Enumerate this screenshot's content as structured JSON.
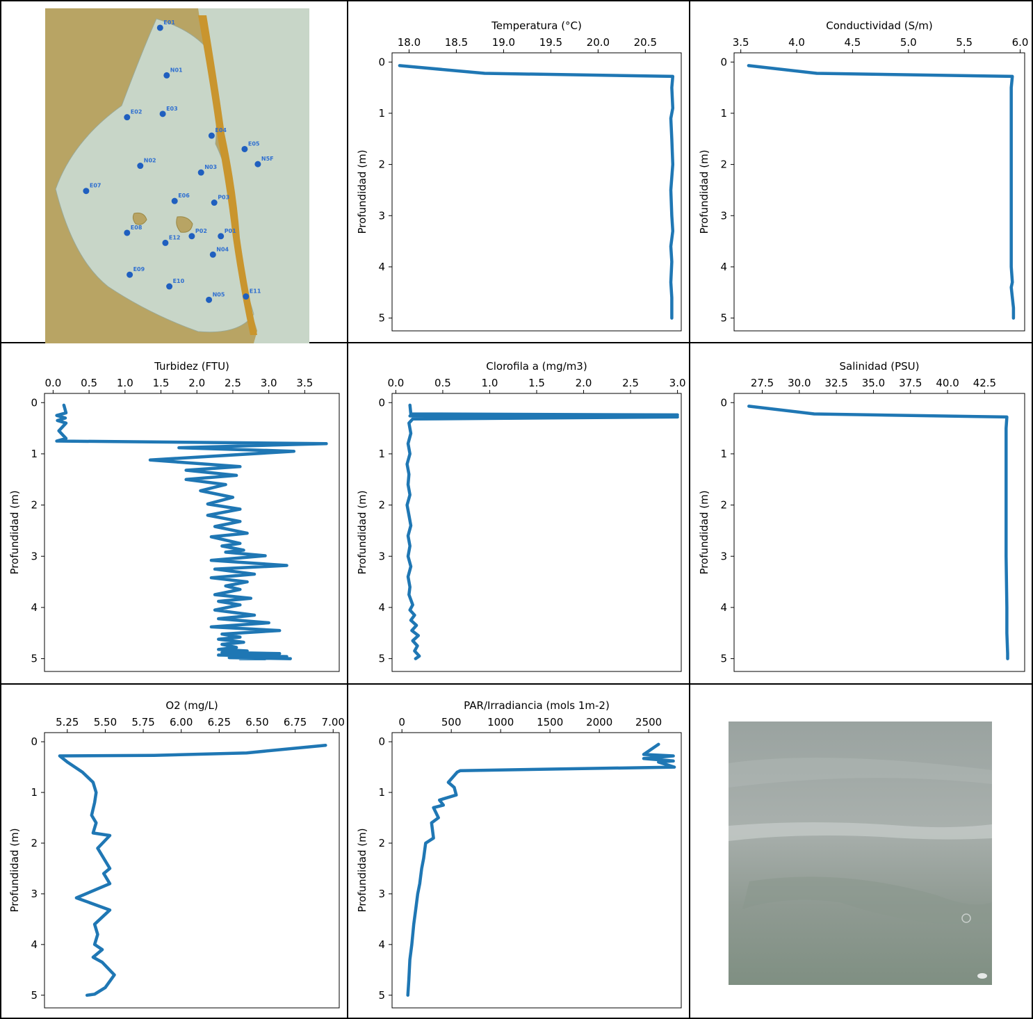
{
  "map": {
    "stations": [
      {
        "label": "E01",
        "lon": 0.435,
        "lat": 0.058
      },
      {
        "label": "N01",
        "lon": 0.46,
        "lat": 0.2
      },
      {
        "label": "E02",
        "lon": 0.31,
        "lat": 0.325
      },
      {
        "label": "E03",
        "lon": 0.445,
        "lat": 0.315
      },
      {
        "label": "E04",
        "lon": 0.63,
        "lat": 0.38
      },
      {
        "label": "E05",
        "lon": 0.755,
        "lat": 0.42
      },
      {
        "label": "N5F",
        "lon": 0.805,
        "lat": 0.465
      },
      {
        "label": "N02",
        "lon": 0.36,
        "lat": 0.47
      },
      {
        "label": "N03",
        "lon": 0.59,
        "lat": 0.49
      },
      {
        "label": "E07",
        "lon": 0.155,
        "lat": 0.545
      },
      {
        "label": "E06",
        "lon": 0.49,
        "lat": 0.575
      },
      {
        "label": "P03",
        "lon": 0.64,
        "lat": 0.58
      },
      {
        "label": "E08",
        "lon": 0.31,
        "lat": 0.67
      },
      {
        "label": "E12",
        "lon": 0.455,
        "lat": 0.7
      },
      {
        "label": "P02",
        "lon": 0.555,
        "lat": 0.68
      },
      {
        "label": "P01",
        "lon": 0.665,
        "lat": 0.68
      },
      {
        "label": "N04",
        "lon": 0.635,
        "lat": 0.735
      },
      {
        "label": "E09",
        "lon": 0.32,
        "lat": 0.795
      },
      {
        "label": "E10",
        "lon": 0.47,
        "lat": 0.83
      },
      {
        "label": "N05",
        "lon": 0.62,
        "lat": 0.87
      },
      {
        "label": "E11",
        "lon": 0.76,
        "lat": 0.86
      }
    ],
    "colors": {
      "land": "#b8a464",
      "sea": "#c8d6c8",
      "urban": "#c9952e",
      "marker": "#1f5fbf"
    }
  },
  "chart_data": [
    {
      "type": "line",
      "title": "Temperatura (°C)",
      "ylabel": "Profundidad (m)",
      "xlim": [
        17.82,
        20.88
      ],
      "ylim": [
        5.25,
        -0.18
      ],
      "xticks": [
        18.0,
        18.5,
        19.0,
        19.5,
        20.0,
        20.5
      ],
      "xtick_labels": [
        "18.0",
        "18.5",
        "19.0",
        "19.5",
        "20.0",
        "20.5"
      ],
      "yticks": [
        0,
        1,
        2,
        3,
        4,
        5
      ],
      "ytick_labels": [
        "0",
        "1",
        "2",
        "3",
        "4",
        "5"
      ],
      "series": [
        {
          "x": [
            17.9,
            18.8,
            20.79,
            20.78,
            20.79,
            20.77,
            20.78,
            20.79,
            20.77,
            20.78,
            20.79,
            20.77,
            20.78,
            20.77,
            20.78,
            20.78
          ],
          "y": [
            0.07,
            0.22,
            0.28,
            0.5,
            0.9,
            1.1,
            1.5,
            2.0,
            2.5,
            3.0,
            3.3,
            3.6,
            3.9,
            4.3,
            4.6,
            5.0
          ]
        }
      ],
      "color": "#1f77b4"
    },
    {
      "type": "line",
      "title": "Conductividad (S/m)",
      "ylabel": "Profundidad (m)",
      "xlim": [
        3.44,
        6.04
      ],
      "ylim": [
        5.25,
        -0.18
      ],
      "xticks": [
        3.5,
        4.0,
        4.5,
        5.0,
        5.5,
        6.0
      ],
      "xtick_labels": [
        "3.5",
        "4.0",
        "4.5",
        "5.0",
        "5.5",
        "6.0"
      ],
      "yticks": [
        0,
        1,
        2,
        3,
        4,
        5
      ],
      "ytick_labels": [
        "0",
        "1",
        "2",
        "3",
        "4",
        "5"
      ],
      "series": [
        {
          "x": [
            3.57,
            4.18,
            5.93,
            5.92,
            5.92,
            5.92,
            5.92,
            5.92,
            5.93,
            5.92,
            5.93,
            5.94,
            5.94
          ],
          "y": [
            0.07,
            0.22,
            0.28,
            0.5,
            1.0,
            2.0,
            3.0,
            4.0,
            4.3,
            4.4,
            4.6,
            4.8,
            5.0
          ]
        }
      ],
      "color": "#1f77b4"
    },
    {
      "type": "line",
      "title": "Turbidez (FTU)",
      "ylabel": "Profundidad (m)",
      "xlim": [
        -0.12,
        3.98
      ],
      "ylim": [
        5.25,
        -0.18
      ],
      "xticks": [
        0.0,
        0.5,
        1.0,
        1.5,
        2.0,
        2.5,
        3.0,
        3.5
      ],
      "xtick_labels": [
        "0.0",
        "0.5",
        "1.0",
        "1.5",
        "2.0",
        "2.5",
        "3.0",
        "3.5"
      ],
      "yticks": [
        0,
        1,
        2,
        3,
        4,
        5
      ],
      "ytick_labels": [
        "0",
        "1",
        "2",
        "3",
        "4",
        "5"
      ],
      "series": [
        {
          "x": [
            0.15,
            0.18,
            0.05,
            0.17,
            0.06,
            0.18,
            0.08,
            0.18,
            0.05,
            3.8,
            1.75,
            3.35,
            1.35,
            2.6,
            1.85,
            2.55,
            1.85,
            2.4,
            2.05,
            2.5,
            2.15,
            2.6,
            2.15,
            2.6,
            2.25,
            2.7,
            2.2,
            2.6,
            2.35,
            2.65,
            2.4,
            2.95,
            2.2,
            3.25,
            2.25,
            2.8,
            2.2,
            2.7,
            2.4,
            2.6,
            2.25,
            2.75,
            2.3,
            2.6,
            2.25,
            2.8,
            2.3,
            3.0,
            2.2,
            3.15,
            2.35,
            2.6,
            2.3,
            2.65,
            2.35,
            2.55,
            2.3,
            2.7,
            2.35,
            3.15,
            2.3,
            3.25,
            2.45,
            3.3,
            2.55,
            3.05,
            2.5,
            2.95,
            2.6
          ],
          "y": [
            0.05,
            0.2,
            0.25,
            0.3,
            0.35,
            0.4,
            0.55,
            0.7,
            0.75,
            0.8,
            0.88,
            0.95,
            1.12,
            1.25,
            1.32,
            1.42,
            1.5,
            1.6,
            1.72,
            1.85,
            1.98,
            2.08,
            2.2,
            2.32,
            2.42,
            2.55,
            2.62,
            2.75,
            2.8,
            2.88,
            2.92,
            2.99,
            3.08,
            3.18,
            3.25,
            3.35,
            3.42,
            3.5,
            3.58,
            3.65,
            3.75,
            3.82,
            3.88,
            3.95,
            4.05,
            4.15,
            4.22,
            4.3,
            4.38,
            4.45,
            4.52,
            4.58,
            4.62,
            4.68,
            4.72,
            4.78,
            4.82,
            4.85,
            4.88,
            4.9,
            4.93,
            4.96,
            4.98,
            5.0,
            4.95,
            4.92,
            4.98,
            5.0,
            5.0
          ]
        }
      ],
      "color": "#1f77b4"
    },
    {
      "type": "line",
      "title": "Clorofila a (mg/m3)",
      "ylabel": "Profundidad (m)",
      "xlim": [
        -0.04,
        3.04
      ],
      "ylim": [
        5.25,
        -0.18
      ],
      "xticks": [
        0.0,
        0.5,
        1.0,
        1.5,
        2.0,
        2.5,
        3.0
      ],
      "xtick_labels": [
        "0.0",
        "0.5",
        "1.0",
        "1.5",
        "2.0",
        "2.5",
        "3.0"
      ],
      "yticks": [
        0,
        1,
        2,
        3,
        4,
        5
      ],
      "ytick_labels": [
        "0",
        "1",
        "2",
        "3",
        "4",
        "5"
      ],
      "series": [
        {
          "x": [
            0.15,
            0.16,
            3.0,
            0.15,
            3.0,
            0.18,
            0.14,
            0.16,
            0.13,
            0.15,
            0.12,
            0.14,
            0.13,
            0.15,
            0.12,
            0.14,
            0.16,
            0.13,
            0.15,
            0.13,
            0.16,
            0.13,
            0.15,
            0.14,
            0.16,
            0.18,
            0.15,
            0.2,
            0.16,
            0.22,
            0.17,
            0.24,
            0.18,
            0.23,
            0.2,
            0.25,
            0.21
          ],
          "y": [
            0.05,
            0.22,
            0.24,
            0.26,
            0.28,
            0.32,
            0.4,
            0.6,
            0.8,
            1.0,
            1.2,
            1.4,
            1.6,
            1.8,
            2.0,
            2.2,
            2.4,
            2.6,
            2.8,
            3.0,
            3.2,
            3.4,
            3.6,
            3.75,
            3.85,
            3.95,
            4.05,
            4.15,
            4.25,
            4.35,
            4.45,
            4.55,
            4.65,
            4.75,
            4.85,
            4.95,
            5.0
          ]
        }
      ],
      "color": "#1f77b4"
    },
    {
      "type": "line",
      "title": "Salinidad (PSU)",
      "ylabel": "Profundidad (m)",
      "xlim": [
        25.6,
        45.2
      ],
      "ylim": [
        5.25,
        -0.18
      ],
      "xticks": [
        27.5,
        30.0,
        32.5,
        35.0,
        37.5,
        40.0,
        42.5
      ],
      "xtick_labels": [
        "27.5",
        "30.0",
        "32.5",
        "35.0",
        "37.5",
        "40.0",
        "42.5"
      ],
      "yticks": [
        0,
        1,
        2,
        3,
        4,
        5
      ],
      "ytick_labels": [
        "0",
        "1",
        "2",
        "3",
        "4",
        "5"
      ],
      "series": [
        {
          "x": [
            26.6,
            31.0,
            44.0,
            43.95,
            43.95,
            43.95,
            43.95,
            44.0,
            44.0,
            44.05,
            44.05
          ],
          "y": [
            0.07,
            0.22,
            0.28,
            0.5,
            1.0,
            2.0,
            3.0,
            4.0,
            4.5,
            4.9,
            5.0
          ]
        }
      ],
      "color": "#1f77b4"
    },
    {
      "type": "line",
      "title": "O2 (mg/L)",
      "ylabel": "Profundidad (m)",
      "xlim": [
        5.1,
        7.04
      ],
      "ylim": [
        5.25,
        -0.18
      ],
      "xticks": [
        5.25,
        5.5,
        5.75,
        6.0,
        6.25,
        6.5,
        6.75,
        7.0
      ],
      "xtick_labels": [
        "5.25",
        "5.50",
        "5.75",
        "6.00",
        "6.25",
        "6.50",
        "6.75",
        "7.00"
      ],
      "yticks": [
        0,
        1,
        2,
        3,
        4,
        5
      ],
      "ytick_labels": [
        "0",
        "1",
        "2",
        "3",
        "4",
        "5"
      ],
      "series": [
        {
          "x": [
            6.95,
            6.43,
            5.82,
            5.2,
            5.25,
            5.35,
            5.42,
            5.44,
            5.43,
            5.41,
            5.44,
            5.42,
            5.53,
            5.45,
            5.53,
            5.49,
            5.53,
            5.31,
            5.53,
            5.43,
            5.45,
            5.43,
            5.48,
            5.42,
            5.48,
            5.56,
            5.5,
            5.43,
            5.38
          ],
          "y": [
            0.07,
            0.22,
            0.27,
            0.28,
            0.4,
            0.6,
            0.8,
            1.0,
            1.2,
            1.45,
            1.6,
            1.8,
            1.85,
            2.1,
            2.5,
            2.6,
            2.8,
            3.08,
            3.32,
            3.6,
            3.8,
            4.0,
            4.1,
            4.25,
            4.35,
            4.6,
            4.85,
            4.98,
            5.0
          ]
        }
      ],
      "color": "#1f77b4"
    },
    {
      "type": "line",
      "title": "PAR/Irradiancia (mols 1m-2)",
      "ylabel": "Profundidad (m)",
      "xlim": [
        -100,
        2830
      ],
      "ylim": [
        5.25,
        -0.18
      ],
      "xticks": [
        0,
        500,
        1000,
        1500,
        2000,
        2500
      ],
      "xtick_labels": [
        "0",
        "500",
        "1000",
        "1500",
        "2000",
        "2500"
      ],
      "yticks": [
        0,
        1,
        2,
        3,
        4,
        5
      ],
      "ytick_labels": [
        "0",
        "1",
        "2",
        "3",
        "4",
        "5"
      ],
      "series": [
        {
          "x": [
            2600,
            2450,
            2750,
            2450,
            2750,
            2600,
            2760,
            590,
            560,
            470,
            530,
            550,
            380,
            420,
            320,
            370,
            300,
            320,
            240,
            220,
            200,
            180,
            160,
            140,
            120,
            100,
            80,
            70,
            60
          ],
          "y": [
            0.05,
            0.25,
            0.28,
            0.33,
            0.38,
            0.4,
            0.5,
            0.57,
            0.6,
            0.8,
            0.9,
            1.05,
            1.15,
            1.25,
            1.3,
            1.5,
            1.6,
            1.9,
            2.0,
            2.3,
            2.5,
            2.8,
            3.0,
            3.3,
            3.6,
            4.0,
            4.3,
            4.7,
            5.0
          ]
        }
      ],
      "color": "#1f77b4"
    }
  ]
}
